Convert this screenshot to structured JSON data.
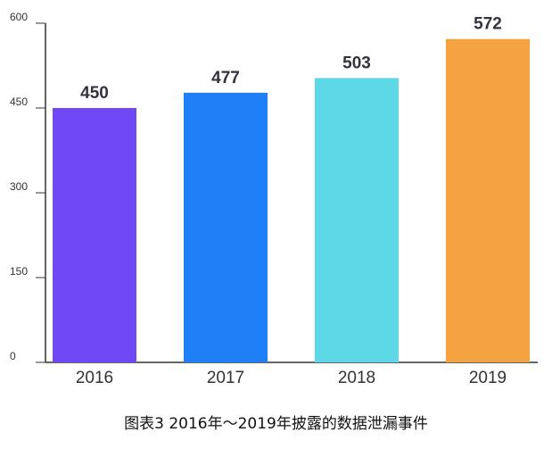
{
  "chart_data": {
    "type": "bar",
    "categories": [
      "2016",
      "2017",
      "2018",
      "2019"
    ],
    "values": [
      450,
      477,
      503,
      572
    ],
    "colors": [
      "#7048F5",
      "#1E7FF6",
      "#5CD8E6",
      "#F4A340"
    ],
    "ylim": [
      0,
      600
    ],
    "yticks": [
      "0",
      "150",
      "300",
      "450",
      "600"
    ],
    "title": "图表3 2016年～2019年披露的数据泄漏事件",
    "xlabel": "",
    "ylabel": "",
    "grid": false
  }
}
